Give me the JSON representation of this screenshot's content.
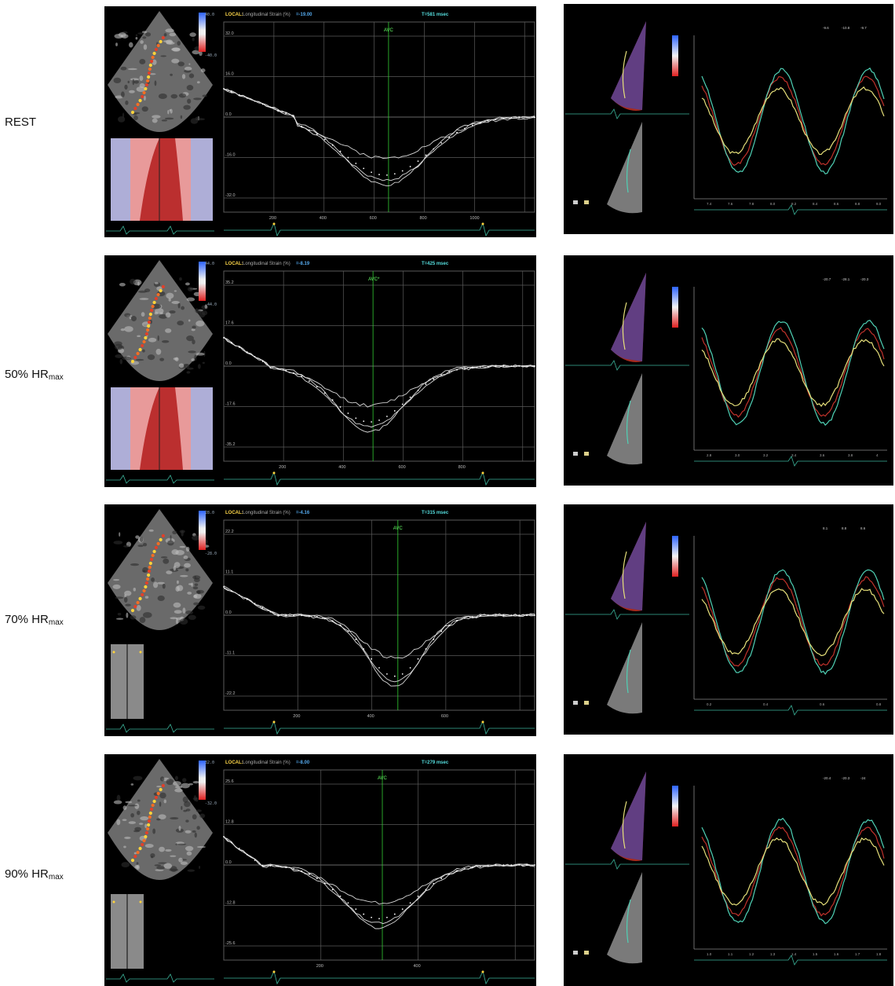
{
  "rows": [
    {
      "label_main": "REST",
      "label_sub": "",
      "header": {
        "local": "LOCAL:",
        "title": "Longitudinal Strain (%)",
        "value": "=-19.00",
        "time": "T=581 msec"
      },
      "avc": "AVC",
      "y_ticks": [
        "32.0",
        "16.0",
        "0.0",
        "-16.0",
        "-32.0"
      ],
      "x_ticks": [
        "200",
        "400",
        "600",
        "800",
        "1000"
      ],
      "scale_top": "40.0",
      "scale_bottom": "-40.0",
      "right_ticks": [
        "7.4",
        "7.6",
        "7.8",
        "8.0",
        "8.2",
        "8.4",
        "8.6",
        "8.8",
        "9.0"
      ],
      "right_header": [
        "-9.6",
        "-10.8",
        "-9.7"
      ]
    },
    {
      "label_main": "50% HR",
      "label_sub": "max",
      "header": {
        "local": "LOCAL:",
        "title": "Longitudinal Strain (%)",
        "value": "=-8.19",
        "time": "T=425 msec"
      },
      "avc": "AVC*",
      "y_ticks": [
        "35.2",
        "17.6",
        "0.0",
        "-17.6",
        "-35.2"
      ],
      "x_ticks": [
        "200",
        "400",
        "600",
        "800"
      ],
      "scale_top": "44.0",
      "scale_bottom": "-44.0",
      "right_ticks": [
        "2.8",
        "3.0",
        "3.2",
        "3.4",
        "3.6",
        "3.8",
        "4"
      ],
      "right_header": [
        "-20.7",
        "-28.1",
        "-20.3"
      ]
    },
    {
      "label_main": "70% HR",
      "label_sub": "max",
      "header": {
        "local": "LOCAL:",
        "title": "Longitudinal Strain (%)",
        "value": "=-4.16",
        "time": "T=315 msec"
      },
      "avc": "AVC",
      "y_ticks": [
        "22.2",
        "11.1",
        "0.0",
        "-11.1",
        "-22.2"
      ],
      "x_ticks": [
        "200",
        "400",
        "600"
      ],
      "scale_top": "28.0",
      "scale_bottom": "-28.0",
      "right_ticks": [
        "0.2",
        "0.4",
        "0.6",
        "0.8"
      ],
      "right_header": [
        "8.1",
        "8.8",
        "8.6"
      ]
    },
    {
      "label_main": "90% HR",
      "label_sub": "max",
      "header": {
        "local": "LOCAL:",
        "title": "Longitudinal Strain (%)",
        "value": "=-8.00",
        "time": "T=279 msec"
      },
      "avc": "AVC",
      "y_ticks": [
        "25.6",
        "12.8",
        "0.0",
        "-12.8",
        "-25.6"
      ],
      "x_ticks": [
        "200",
        "400"
      ],
      "scale_top": "32.0",
      "scale_bottom": "-32.0",
      "right_ticks": [
        "1.0",
        "1.1",
        "1.2",
        "1.3",
        "1.4",
        "1.5",
        "1.6",
        "1.7",
        "1.8"
      ],
      "right_header": [
        "-20.4",
        "-20.3",
        "-24"
      ]
    }
  ],
  "colors": {
    "background": "#000000",
    "grid": "#5a5a5a",
    "strain_curve": "#d9d9d9",
    "avc_marker": "#33cc33",
    "trace_yellow": "#e6e07a",
    "trace_red": "#c0322b",
    "trace_cyan": "#4fd1b5",
    "ecg": "#3bb39a"
  },
  "icons": [
    "echo-sector-image",
    "color-scale-bar",
    "mmode-strain-map",
    "ecg-trace"
  ]
}
